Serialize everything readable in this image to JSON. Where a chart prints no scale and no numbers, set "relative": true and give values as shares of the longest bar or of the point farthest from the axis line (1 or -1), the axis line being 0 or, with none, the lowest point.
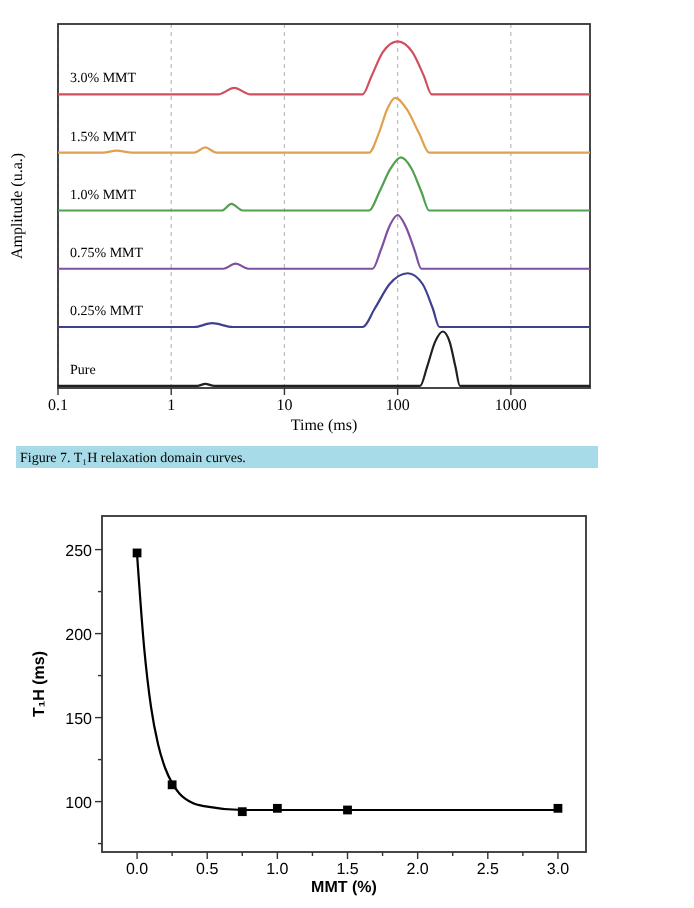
{
  "chart_data": [
    {
      "type": "line",
      "xlabel": "Time (ms)",
      "ylabel": "Amplitude (u.a.)",
      "log": "x",
      "xlim": [
        0.1,
        5000
      ],
      "xticks": [
        0.1,
        1,
        10,
        100,
        1000
      ],
      "grid": "x",
      "relative": true,
      "annotations": [
        "Figure 7. T₁H relaxation domain curves."
      ],
      "series": [
        {
          "name": "3.0% MMT",
          "color": "#d05060",
          "x": [
            0.1,
            2.6,
            3.6,
            5,
            49,
            59,
            74,
            100,
            135,
            170,
            200,
            5000
          ],
          "values": [
            0.847,
            0.847,
            0.866,
            0.847,
            0.847,
            0.901,
            0.969,
            1.0,
            0.969,
            0.901,
            0.847,
            0.847
          ]
        },
        {
          "name": "1.5% MMT",
          "color": "#e0a050",
          "x": [
            0.1,
            0.25,
            0.33,
            0.45,
            1.6,
            2,
            2.5,
            56,
            68,
            81,
            95,
            120,
            155,
            190,
            5000
          ],
          "values": [
            0.679,
            0.679,
            0.685,
            0.679,
            0.679,
            0.694,
            0.679,
            0.679,
            0.734,
            0.805,
            0.837,
            0.805,
            0.734,
            0.679,
            0.679
          ]
        },
        {
          "name": "1.0% MMT",
          "color": "#50a050",
          "x": [
            0.1,
            2.8,
            3.4,
            4.3,
            56,
            69,
            87,
            107,
            132,
            162,
            190,
            5000
          ],
          "values": [
            0.512,
            0.512,
            0.531,
            0.512,
            0.512,
            0.566,
            0.634,
            0.665,
            0.634,
            0.566,
            0.512,
            0.512
          ]
        },
        {
          "name": "0.75% MMT",
          "color": "#8050a0",
          "x": [
            0.1,
            2.9,
            3.7,
            4.8,
            60,
            71,
            85,
            100,
            117,
            141,
            162,
            5000
          ],
          "values": [
            0.344,
            0.344,
            0.359,
            0.344,
            0.344,
            0.398,
            0.468,
            0.499,
            0.468,
            0.398,
            0.344,
            0.344
          ]
        },
        {
          "name": "0.25% MMT",
          "color": "#404090",
          "x": [
            0.1,
            1.6,
            2.3,
            3.5,
            49,
            63,
            85,
            123,
            166,
            204,
            234,
            5000
          ],
          "values": [
            0.176,
            0.176,
            0.187,
            0.176,
            0.176,
            0.23,
            0.3,
            0.331,
            0.3,
            0.23,
            0.176,
            0.176
          ]
        },
        {
          "name": "Pure",
          "color": "#202020",
          "x": [
            0.1,
            1.7,
            2,
            2.4,
            158,
            182,
            214,
            251,
            288,
            324,
            355,
            5000
          ],
          "values": [
            0.006,
            0.006,
            0.012,
            0.006,
            0.006,
            0.061,
            0.133,
            0.163,
            0.133,
            0.061,
            0.006,
            0.006
          ]
        }
      ]
    },
    {
      "type": "scatter",
      "xlabel": "MMT (%)",
      "ylabel": "T₁H (ms)",
      "xlim": [
        -0.25,
        3.2
      ],
      "ylim": [
        70,
        270
      ],
      "marker": "square",
      "xticks": [
        {
          "value": 0,
          "label": "0.0"
        },
        {
          "value": 0.25,
          "label": null
        },
        {
          "value": 0.5,
          "label": "0.5"
        },
        {
          "value": 0.75,
          "label": null
        },
        {
          "value": 1,
          "label": "1.0"
        },
        {
          "value": 1.25,
          "label": null
        },
        {
          "value": 1.5,
          "label": "1.5"
        },
        {
          "value": 1.75,
          "label": null
        },
        {
          "value": 2,
          "label": "2.0"
        },
        {
          "value": 2.25,
          "label": null
        },
        {
          "value": 2.5,
          "label": "2.5"
        },
        {
          "value": 2.75,
          "label": null
        },
        {
          "value": 3,
          "label": "3.0"
        }
      ],
      "yticks": [
        {
          "value": 75,
          "label": null
        },
        100,
        {
          "value": 125,
          "label": null
        },
        150,
        {
          "value": 175,
          "label": null
        },
        200,
        {
          "value": 225,
          "label": null
        },
        250
      ],
      "series": [
        {
          "color": "#000000",
          "x": [
            0,
            0.25,
            0.75,
            1,
            1.5,
            3
          ],
          "values": [
            248,
            110,
            94,
            96,
            95,
            96
          ]
        },
        {
          "type": "line",
          "marker": "none",
          "color": "#000000",
          "x": [
            0,
            0.05,
            0.1,
            0.15,
            0.2,
            0.25,
            0.3,
            0.4,
            0.5,
            0.75,
            1,
            3
          ],
          "values": [
            247,
            192,
            156,
            134,
            120,
            111,
            105,
            99,
            97,
            95,
            95,
            95
          ]
        }
      ]
    }
  ]
}
